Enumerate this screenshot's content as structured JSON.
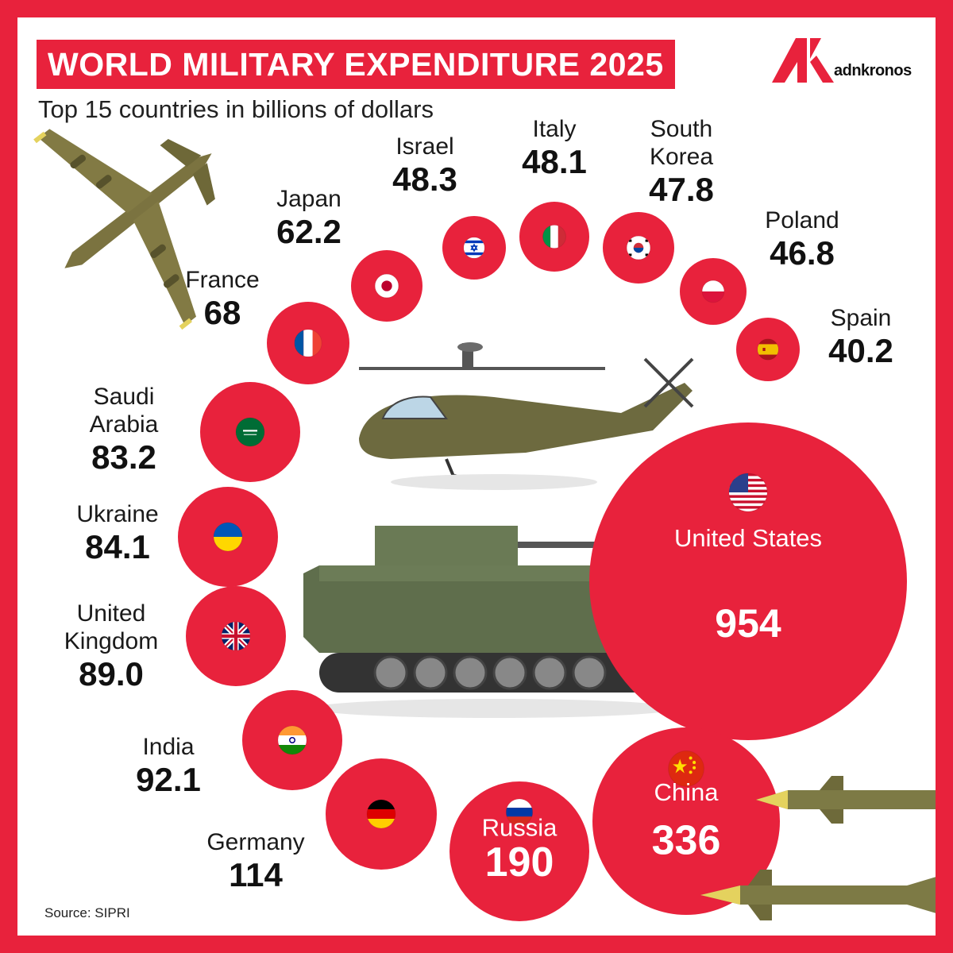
{
  "header": {
    "title": "WORLD MILITARY EXPENDITURE 2025",
    "subtitle": "Top 15 countries in billions of dollars",
    "logo_text": "adnkronos",
    "source": "Source: SIPRI"
  },
  "colors": {
    "accent": "#e8223c",
    "text": "#111111",
    "vehicle": "#5b6b48"
  },
  "chart_data": {
    "type": "bubble",
    "title": "WORLD MILITARY EXPENDITURE 2025",
    "subtitle": "Top 15 countries in billions of dollars",
    "unit": "billions of dollars",
    "series": [
      {
        "country": "United States",
        "label": "United States",
        "display": "954",
        "value": 954,
        "flag": "us-flag-icon"
      },
      {
        "country": "China",
        "label": "China",
        "display": "336",
        "value": 336,
        "flag": "china-flag-icon"
      },
      {
        "country": "Russia",
        "label": "Russia",
        "display": "190",
        "value": 190,
        "flag": "russia-flag-icon"
      },
      {
        "country": "Germany",
        "label": "Germany",
        "display": "114",
        "value": 114,
        "flag": "germany-flag-icon"
      },
      {
        "country": "India",
        "label": "India",
        "display": "92.1",
        "value": 92.1,
        "flag": "india-flag-icon"
      },
      {
        "country": "United Kingdom",
        "label": "United\nKingdom",
        "display": "89.0",
        "value": 89.0,
        "flag": "uk-flag-icon"
      },
      {
        "country": "Ukraine",
        "label": "Ukraine",
        "display": "84.1",
        "value": 84.1,
        "flag": "ukraine-flag-icon"
      },
      {
        "country": "Saudi Arabia",
        "label": "Saudi\nArabia",
        "display": "83.2",
        "value": 83.2,
        "flag": "saudi-arabia-flag-icon"
      },
      {
        "country": "France",
        "label": "France",
        "display": "68",
        "value": 68,
        "flag": "france-flag-icon"
      },
      {
        "country": "Japan",
        "label": "Japan",
        "display": "62.2",
        "value": 62.2,
        "flag": "japan-flag-icon"
      },
      {
        "country": "Israel",
        "label": "Israel",
        "display": "48.3",
        "value": 48.3,
        "flag": "israel-flag-icon"
      },
      {
        "country": "Italy",
        "label": "Italy",
        "display": "48.1",
        "value": 48.1,
        "flag": "italy-flag-icon"
      },
      {
        "country": "South Korea",
        "label": "South\nKorea",
        "display": "47.8",
        "value": 47.8,
        "flag": "south-korea-flag-icon"
      },
      {
        "country": "Poland",
        "label": "Poland",
        "display": "46.8",
        "value": 46.8,
        "flag": "poland-flag-icon"
      },
      {
        "country": "Spain",
        "label": "Spain",
        "display": "40.2",
        "value": 40.2,
        "flag": "spain-flag-icon"
      }
    ]
  }
}
